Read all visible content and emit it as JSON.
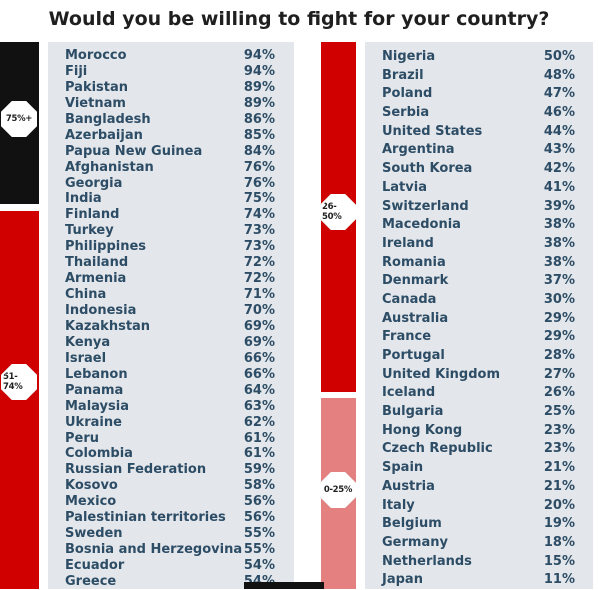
{
  "title": "Would you be willing to fight for your country?",
  "colors": {
    "black_band": "#111111",
    "red_band": "#d00000",
    "pink_band": "#e48080",
    "panel": "#e3e6ea",
    "text": "#2d4d66"
  },
  "bands": [
    {
      "label": "75%+",
      "color": "#111111"
    },
    {
      "label": "51-74%",
      "color": "#d00000"
    },
    {
      "label": "26-50%",
      "color": "#d00000"
    },
    {
      "label": "0-25%",
      "color": "#e48080"
    }
  ],
  "left_list": [
    {
      "country": "Morocco",
      "pct": "94%"
    },
    {
      "country": "Fiji",
      "pct": "94%"
    },
    {
      "country": "Pakistan",
      "pct": "89%"
    },
    {
      "country": "Vietnam",
      "pct": "89%"
    },
    {
      "country": "Bangladesh",
      "pct": "86%"
    },
    {
      "country": "Azerbaijan",
      "pct": "85%"
    },
    {
      "country": "Papua New Guinea",
      "pct": "84%"
    },
    {
      "country": "Afghanistan",
      "pct": "76%"
    },
    {
      "country": "Georgia",
      "pct": "76%"
    },
    {
      "country": "India",
      "pct": "75%"
    },
    {
      "country": "Finland",
      "pct": "74%"
    },
    {
      "country": "Turkey",
      "pct": "73%"
    },
    {
      "country": "Philippines",
      "pct": "73%"
    },
    {
      "country": "Thailand",
      "pct": "72%"
    },
    {
      "country": "Armenia",
      "pct": "72%"
    },
    {
      "country": "China",
      "pct": "71%"
    },
    {
      "country": "Indonesia",
      "pct": "70%"
    },
    {
      "country": "Kazakhstan",
      "pct": "69%"
    },
    {
      "country": "Kenya",
      "pct": "69%"
    },
    {
      "country": "Israel",
      "pct": "66%"
    },
    {
      "country": "Lebanon",
      "pct": "66%"
    },
    {
      "country": "Panama",
      "pct": "64%"
    },
    {
      "country": "Malaysia",
      "pct": "63%"
    },
    {
      "country": "Ukraine",
      "pct": "62%"
    },
    {
      "country": "Peru",
      "pct": "61%"
    },
    {
      "country": "Colombia",
      "pct": "61%"
    },
    {
      "country": "Russian Federation",
      "pct": "59%"
    },
    {
      "country": "Kosovo",
      "pct": "58%"
    },
    {
      "country": "Mexico",
      "pct": "56%"
    },
    {
      "country": "Palestinian territories",
      "pct": "56%"
    },
    {
      "country": "Sweden",
      "pct": "55%"
    },
    {
      "country": "Bosnia and Herzegovina",
      "pct": "55%"
    },
    {
      "country": "Ecuador",
      "pct": "54%"
    },
    {
      "country": "Greece",
      "pct": "54%"
    }
  ],
  "right_list": [
    {
      "country": "Nigeria",
      "pct": "50%"
    },
    {
      "country": "Brazil",
      "pct": "48%"
    },
    {
      "country": "Poland",
      "pct": "47%"
    },
    {
      "country": "Serbia",
      "pct": "46%"
    },
    {
      "country": "United States",
      "pct": "44%"
    },
    {
      "country": "Argentina",
      "pct": "43%"
    },
    {
      "country": "South Korea",
      "pct": "42%"
    },
    {
      "country": "Latvia",
      "pct": "41%"
    },
    {
      "country": "Switzerland",
      "pct": "39%"
    },
    {
      "country": "Macedonia",
      "pct": "38%"
    },
    {
      "country": "Ireland",
      "pct": "38%"
    },
    {
      "country": "Romania",
      "pct": "38%"
    },
    {
      "country": "Denmark",
      "pct": "37%"
    },
    {
      "country": "Canada",
      "pct": "30%"
    },
    {
      "country": "Australia",
      "pct": "29%"
    },
    {
      "country": "France",
      "pct": "29%"
    },
    {
      "country": "Portugal",
      "pct": "28%"
    },
    {
      "country": "United Kingdom",
      "pct": "27%"
    },
    {
      "country": "Iceland",
      "pct": "26%"
    },
    {
      "country": "Bulgaria",
      "pct": "25%"
    },
    {
      "country": "Hong Kong",
      "pct": "23%"
    },
    {
      "country": "Czech Republic",
      "pct": "23%"
    },
    {
      "country": "Spain",
      "pct": "21%"
    },
    {
      "country": "Austria",
      "pct": "21%"
    },
    {
      "country": "Italy",
      "pct": "20%"
    },
    {
      "country": "Belgium",
      "pct": "19%"
    },
    {
      "country": "Germany",
      "pct": "18%"
    },
    {
      "country": "Netherlands",
      "pct": "15%"
    },
    {
      "country": "Japan",
      "pct": "11%"
    }
  ]
}
